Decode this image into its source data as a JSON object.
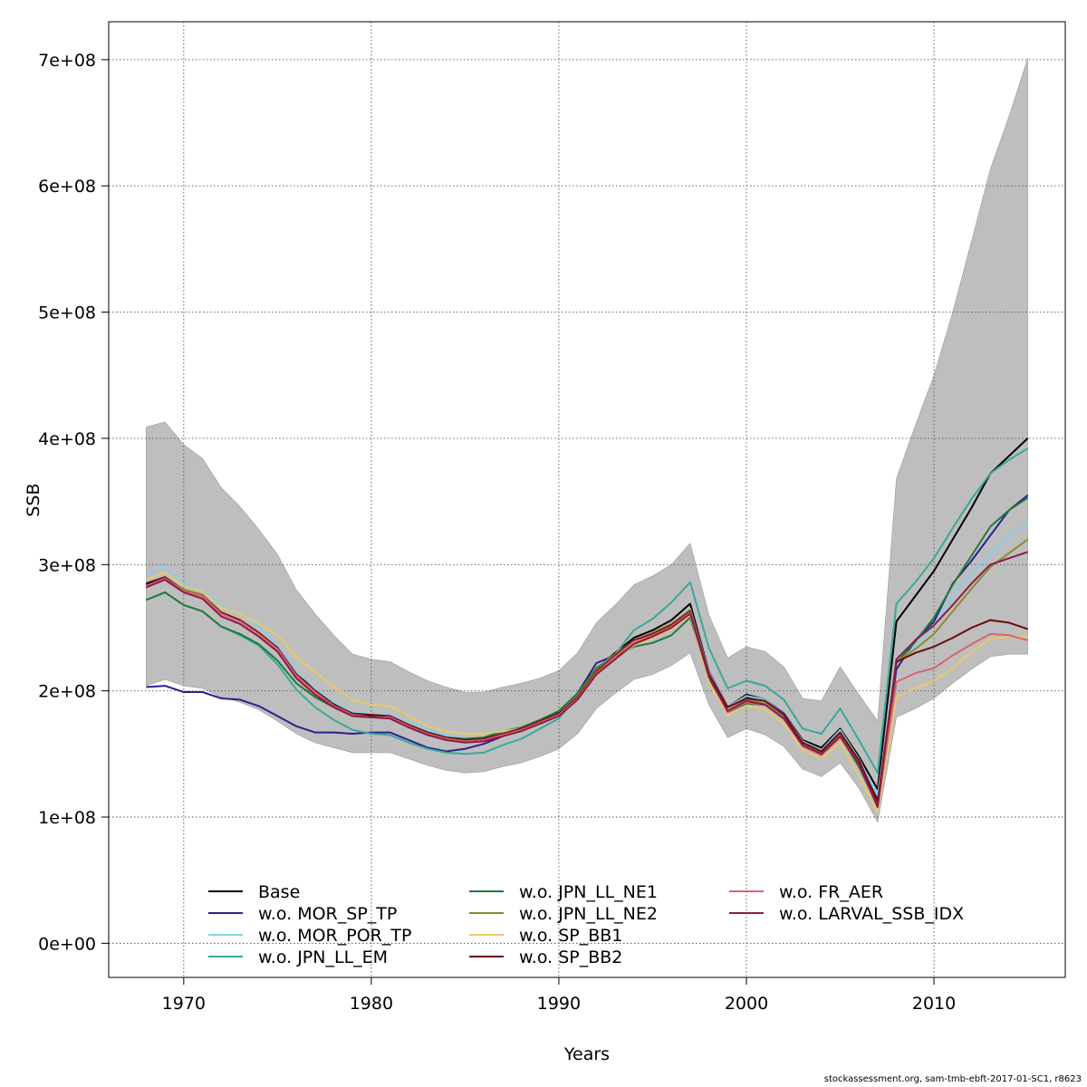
{
  "footer": "stockassessment.org, sam-tmb-ebft-2017-01-SC1, r8623",
  "chart_data": {
    "type": "line",
    "title": "",
    "xlabel": "Years",
    "ylabel": "SSB",
    "xlim": [
      1966,
      2017
    ],
    "ylim": [
      -27000000,
      730000000
    ],
    "x_ticks": [
      1970,
      1980,
      1990,
      2000,
      2010
    ],
    "x_tick_labels": [
      "1970",
      "1980",
      "1990",
      "2000",
      "2010"
    ],
    "y_ticks": [
      0,
      100000000,
      200000000,
      300000000,
      400000000,
      500000000,
      600000000,
      700000000
    ],
    "y_tick_labels": [
      "0e+00",
      "1e+08",
      "2e+08",
      "3e+08",
      "4e+08",
      "5e+08",
      "6e+08",
      "7e+08"
    ],
    "grid": true,
    "legend_placement": "bottom",
    "years": [
      1968,
      1969,
      1970,
      1971,
      1972,
      1973,
      1974,
      1975,
      1976,
      1977,
      1978,
      1979,
      1980,
      1981,
      1982,
      1983,
      1984,
      1985,
      1986,
      1987,
      1988,
      1989,
      1990,
      1991,
      1992,
      1993,
      1994,
      1995,
      1996,
      1997,
      1998,
      1999,
      2000,
      2001,
      2002,
      2003,
      2004,
      2005,
      2006,
      2007,
      2008,
      2009,
      2010,
      2011,
      2012,
      2013,
      2014,
      2015
    ],
    "confidence_band": {
      "color": "#bebebe",
      "upper": [
        409,
        413,
        395,
        384,
        361,
        346,
        328,
        308,
        280,
        261,
        244,
        229,
        225,
        223,
        215,
        208,
        203,
        199,
        199,
        203,
        206,
        210,
        216,
        230,
        254,
        268,
        284,
        291,
        300,
        317,
        260,
        226,
        235,
        231,
        219,
        194,
        192,
        219,
        197,
        176,
        368,
        410,
        450,
        500,
        556,
        613,
        655,
        701
      ],
      "lower": [
        204,
        209,
        204,
        202,
        195,
        191,
        185,
        176,
        166,
        159,
        155,
        151,
        151,
        151,
        146,
        141,
        137,
        135,
        136,
        140,
        143,
        148,
        154,
        166,
        186,
        198,
        209,
        213,
        220,
        230,
        189,
        163,
        170,
        165,
        156,
        138,
        132,
        143,
        123,
        96,
        179,
        186,
        194,
        206,
        217,
        227,
        229,
        229
      ]
    },
    "series": [
      {
        "name": "Base",
        "color": "#000000",
        "values": [
          285,
          290,
          280,
          276,
          262,
          256,
          246,
          234,
          213,
          201,
          190,
          182,
          180,
          180,
          173,
          167,
          163,
          161,
          162,
          166,
          170,
          177,
          183,
          197,
          217,
          230,
          242,
          248,
          256,
          269,
          215,
          187,
          197,
          193,
          182,
          161,
          155,
          170,
          148,
          122,
          255,
          275,
          295,
          320,
          345,
          372,
          386,
          400
        ]
      },
      {
        "name": "w.o. MOR_SP_TP",
        "color": "#2d1f8e",
        "values": [
          203,
          204,
          199,
          199,
          194,
          193,
          188,
          180,
          172,
          167,
          167,
          166,
          167,
          167,
          161,
          155,
          152,
          154,
          158,
          164,
          170,
          176,
          182,
          198,
          222,
          228,
          240,
          245,
          252,
          264,
          215,
          187,
          195,
          193,
          182,
          160,
          152,
          167,
          145,
          114,
          217,
          240,
          255,
          285,
          303,
          323,
          343,
          355
        ]
      },
      {
        "name": "w.o. MOR_POR_TP",
        "color": "#87ceeb",
        "values": [
          292,
          298,
          285,
          280,
          268,
          261,
          251,
          236,
          216,
          202,
          191,
          183,
          182,
          181,
          175,
          169,
          165,
          162,
          163,
          167,
          170,
          177,
          184,
          196,
          216,
          229,
          240,
          246,
          253,
          265,
          214,
          187,
          196,
          193,
          181,
          160,
          153,
          169,
          146,
          117,
          222,
          235,
          252,
          275,
          293,
          308,
          323,
          333
        ]
      },
      {
        "name": "w.o. JPN_LL_EM",
        "color": "#3aa89c",
        "values": [
          272,
          278,
          268,
          263,
          251,
          244,
          236,
          221,
          201,
          187,
          177,
          169,
          166,
          165,
          159,
          154,
          151,
          150,
          151,
          157,
          162,
          170,
          178,
          196,
          218,
          229,
          248,
          257,
          270,
          286,
          234,
          202,
          208,
          204,
          193,
          170,
          166,
          186,
          161,
          135,
          269,
          286,
          305,
          329,
          352,
          372,
          383,
          392
        ]
      },
      {
        "name": "w.o. JPN_LL_NE1",
        "color": "#1f7a3a",
        "values": [
          272,
          278,
          268,
          263,
          251,
          245,
          237,
          224,
          206,
          195,
          187,
          180,
          179,
          179,
          173,
          167,
          163,
          162,
          163,
          168,
          171,
          177,
          184,
          198,
          218,
          227,
          235,
          238,
          244,
          258,
          210,
          183,
          190,
          189,
          178,
          158,
          151,
          164,
          140,
          109,
          222,
          239,
          258,
          284,
          307,
          330,
          343,
          353
        ]
      },
      {
        "name": "w.o. JPN_LL_NE2",
        "color": "#8b8b2f",
        "values": [
          284,
          290,
          280,
          276,
          262,
          256,
          246,
          234,
          213,
          200,
          189,
          181,
          179,
          179,
          172,
          166,
          162,
          160,
          161,
          165,
          169,
          176,
          182,
          196,
          216,
          229,
          240,
          246,
          253,
          264,
          213,
          184,
          193,
          190,
          179,
          158,
          151,
          166,
          143,
          110,
          223,
          233,
          245,
          263,
          281,
          298,
          309,
          320
        ]
      },
      {
        "name": "w.o. SP_BB1",
        "color": "#e8c96a",
        "values": [
          288,
          294,
          283,
          279,
          266,
          261,
          253,
          244,
          227,
          215,
          203,
          193,
          189,
          188,
          180,
          172,
          168,
          166,
          166,
          168,
          170,
          176,
          181,
          193,
          213,
          225,
          236,
          242,
          249,
          260,
          207,
          181,
          188,
          185,
          174,
          153,
          146,
          159,
          133,
          104,
          195,
          202,
          208,
          218,
          231,
          241,
          243,
          243
        ]
      },
      {
        "name": "w.o. SP_BB2",
        "color": "#6b0a0a",
        "values": [
          284,
          290,
          279,
          275,
          262,
          256,
          246,
          234,
          213,
          200,
          189,
          182,
          181,
          180,
          173,
          167,
          163,
          161,
          162,
          166,
          170,
          176,
          182,
          195,
          215,
          228,
          240,
          245,
          252,
          263,
          213,
          187,
          194,
          192,
          181,
          159,
          152,
          167,
          145,
          112,
          223,
          230,
          235,
          242,
          250,
          256,
          254,
          249
        ]
      },
      {
        "name": "w.o. FR_AER",
        "color": "#d9646e",
        "values": [
          283,
          289,
          279,
          275,
          261,
          255,
          245,
          233,
          212,
          199,
          188,
          181,
          179,
          179,
          172,
          166,
          162,
          160,
          161,
          165,
          169,
          175,
          181,
          194,
          214,
          227,
          239,
          244,
          251,
          262,
          211,
          183,
          191,
          189,
          178,
          156,
          149,
          163,
          142,
          108,
          207,
          214,
          218,
          228,
          237,
          245,
          244,
          240
        ]
      },
      {
        "name": "w.o. LARVAL_SSB_IDX",
        "color": "#8b1a4a",
        "values": [
          282,
          288,
          278,
          273,
          259,
          253,
          243,
          231,
          210,
          197,
          187,
          180,
          179,
          178,
          171,
          165,
          161,
          159,
          160,
          164,
          168,
          174,
          180,
          193,
          213,
          225,
          237,
          243,
          250,
          261,
          211,
          184,
          192,
          189,
          178,
          157,
          150,
          164,
          142,
          108,
          225,
          240,
          252,
          268,
          285,
          300,
          305,
          310
        ]
      }
    ]
  }
}
